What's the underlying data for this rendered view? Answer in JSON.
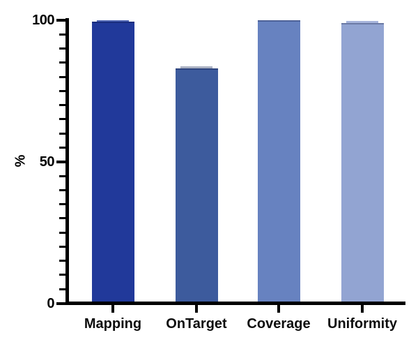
{
  "chart_data": {
    "type": "bar",
    "categories": [
      "Mapping",
      "OnTarget",
      "Coverage",
      "Uniformity"
    ],
    "values": [
      99.5,
      83,
      100,
      99
    ],
    "overlay_values": [
      100,
      83.7,
      100,
      99.7
    ],
    "bar_colors": [
      "#21399a",
      "#3d5b9d",
      "#6782c0",
      "#92a4d2"
    ],
    "overlay_colors": [
      "#5066b4",
      "#aab1c3",
      "#6782c0",
      "#a7b4dc"
    ],
    "ylabel": "%",
    "ylim": [
      0,
      100
    ],
    "yticks_major": [
      0,
      50,
      100
    ],
    "ytick_minor_interval": 5,
    "grid": false,
    "legend": false,
    "axis_color": "#000000",
    "background": "#ffffff"
  }
}
